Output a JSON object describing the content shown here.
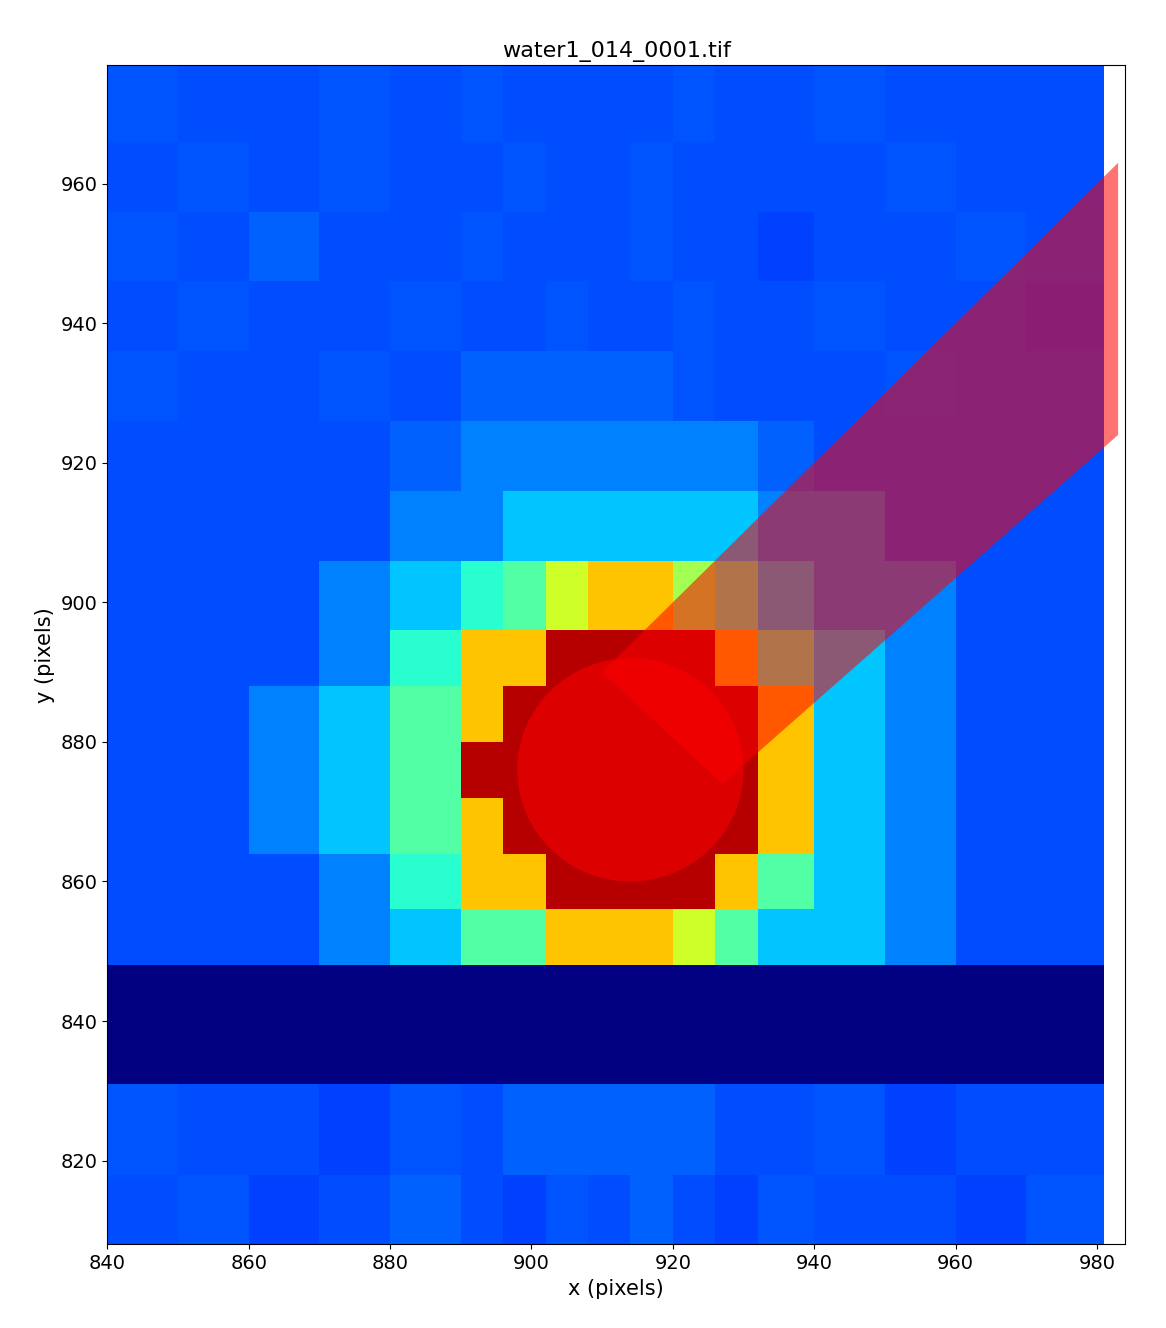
{
  "chart_data": {
    "type": "heatmap",
    "title": "water1_014_0001.tif",
    "x_label": "x (pixels)",
    "y_label": "y (pixels)",
    "xlim": [
      840,
      984
    ],
    "ylim": [
      808,
      977
    ],
    "xticks": [
      840,
      860,
      880,
      900,
      920,
      940,
      960,
      980
    ],
    "yticks": [
      820,
      840,
      860,
      880,
      900,
      920,
      940,
      960
    ],
    "grid": false,
    "x_edges": [
      840,
      850,
      860,
      870,
      880,
      890,
      896,
      902,
      908,
      914,
      920,
      926,
      932,
      940,
      950,
      960,
      970,
      981
    ],
    "y_edges": [
      808,
      818,
      831,
      848,
      856,
      864,
      872,
      880,
      888,
      896,
      906,
      916,
      926,
      936,
      946,
      956,
      966,
      977
    ],
    "color_range": [
      0,
      100
    ],
    "cells": [
      [
        20,
        21,
        19,
        20,
        22,
        20,
        19,
        21,
        20,
        22,
        20,
        19,
        21,
        20,
        20,
        19,
        21
      ],
      [
        21,
        20,
        20,
        19,
        21,
        20,
        22,
        22,
        22,
        22,
        22,
        20,
        20,
        21,
        19,
        20,
        20
      ],
      [
        0,
        0,
        0,
        0,
        0,
        0,
        0,
        0,
        0,
        0,
        0,
        0,
        0,
        0,
        0,
        0,
        0
      ],
      [
        20,
        20,
        20,
        25,
        32,
        45,
        45,
        70,
        70,
        70,
        60,
        45,
        32,
        32,
        25,
        20,
        20
      ],
      [
        20,
        20,
        20,
        25,
        40,
        70,
        70,
        95,
        95,
        95,
        95,
        70,
        45,
        32,
        25,
        20,
        20
      ],
      [
        20,
        20,
        25,
        32,
        45,
        70,
        95,
        95,
        95,
        95,
        95,
        95,
        70,
        32,
        25,
        20,
        20
      ],
      [
        20,
        20,
        25,
        32,
        45,
        95,
        95,
        95,
        95,
        95,
        95,
        95,
        70,
        32,
        25,
        20,
        20
      ],
      [
        20,
        20,
        25,
        32,
        45,
        70,
        95,
        95,
        95,
        95,
        95,
        95,
        70,
        32,
        25,
        20,
        20
      ],
      [
        20,
        20,
        20,
        25,
        40,
        70,
        70,
        95,
        95,
        95,
        95,
        70,
        45,
        32,
        25,
        20,
        20
      ],
      [
        20,
        20,
        20,
        25,
        32,
        40,
        45,
        60,
        70,
        70,
        55,
        45,
        32,
        25,
        25,
        20,
        20
      ],
      [
        20,
        20,
        20,
        20,
        25,
        25,
        32,
        32,
        32,
        32,
        32,
        32,
        25,
        25,
        20,
        20,
        20
      ],
      [
        20,
        20,
        20,
        20,
        22,
        25,
        25,
        25,
        25,
        25,
        25,
        25,
        22,
        20,
        20,
        20,
        20
      ],
      [
        21,
        20,
        20,
        21,
        20,
        22,
        22,
        22,
        22,
        22,
        21,
        20,
        20,
        20,
        21,
        20,
        20
      ],
      [
        20,
        21,
        20,
        20,
        21,
        20,
        20,
        21,
        20,
        20,
        21,
        20,
        20,
        21,
        20,
        20,
        19
      ],
      [
        21,
        20,
        22,
        20,
        20,
        21,
        20,
        20,
        20,
        21,
        20,
        20,
        19,
        20,
        20,
        21,
        20
      ],
      [
        20,
        21,
        20,
        21,
        20,
        20,
        21,
        20,
        20,
        21,
        20,
        20,
        20,
        20,
        21,
        20,
        20
      ],
      [
        21,
        20,
        20,
        21,
        20,
        21,
        20,
        20,
        20,
        20,
        21,
        20,
        20,
        21,
        20,
        20,
        20
      ]
    ],
    "mask_circle": {
      "center": [
        914,
        876
      ],
      "radius": 16,
      "color": "#ff0000"
    },
    "mask_polygon": {
      "vertices": [
        [
          910,
          890
        ],
        [
          927,
          874
        ],
        [
          983,
          924
        ],
        [
          983,
          963
        ]
      ],
      "color": "#ff0000"
    }
  }
}
